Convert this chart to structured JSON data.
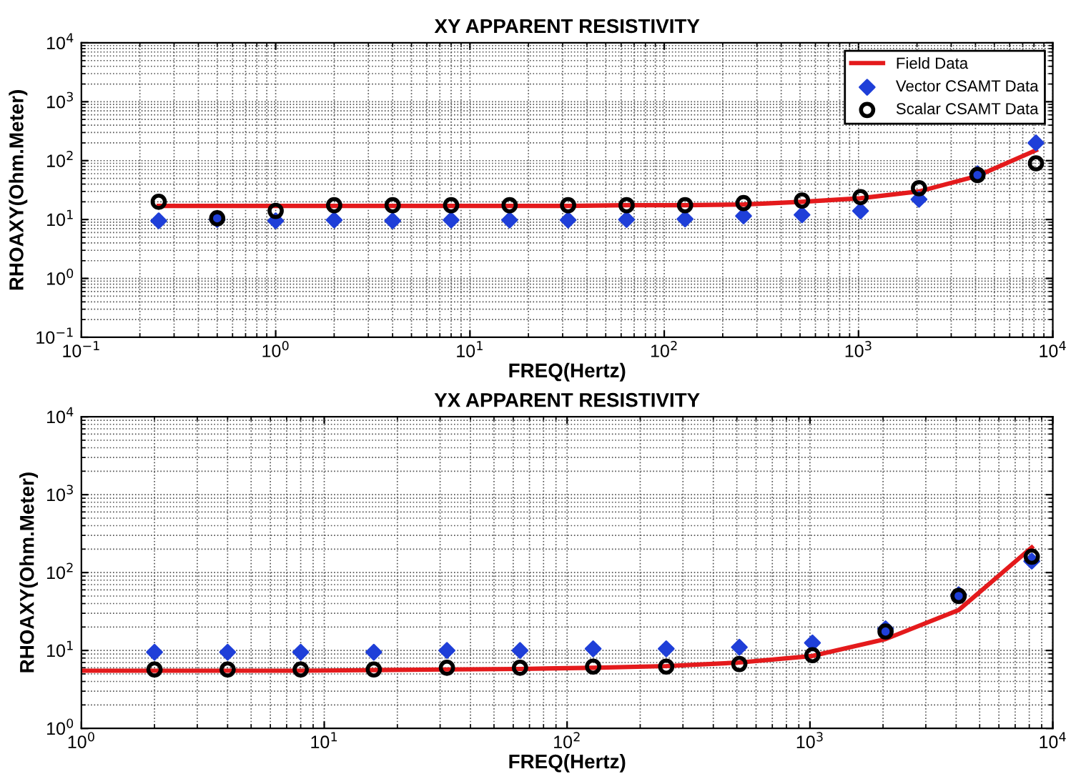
{
  "chart_data": [
    {
      "type": "line",
      "title": "XY APPARENT RESISTIVITY",
      "xlabel": "FREQ(Hertz)",
      "ylabel": "RHOAXY(Ohm.Meter)",
      "log": "xy",
      "grid": true,
      "legend": "top right",
      "xlim": [
        0.1,
        10000
      ],
      "ylim": [
        0.1,
        10000
      ],
      "xticks": [
        {
          "value": 0.1,
          "label": "10$^{−1}$"
        },
        {
          "value": 1,
          "label": "10$^{0}$"
        },
        {
          "value": 10,
          "label": "10$^{1}$"
        },
        {
          "value": 100,
          "label": "10$^{2}$"
        },
        {
          "value": 1000,
          "label": "10$^{3}$"
        },
        {
          "value": 10000,
          "label": "10$^{4}$"
        }
      ],
      "yticks": [
        {
          "value": 0.1,
          "label": "10$^{−1}$"
        },
        {
          "value": 1,
          "label": "10$^{0}$"
        },
        {
          "value": 10,
          "label": "10$^{1}$"
        },
        {
          "value": 100,
          "label": "10$^{2}$"
        },
        {
          "value": 1000,
          "label": "10$^{3}$"
        },
        {
          "value": 10000,
          "label": "10$^{4}$"
        }
      ],
      "x": [
        0.25,
        0.5,
        1,
        2,
        4,
        8,
        16,
        32,
        64,
        128,
        256,
        512,
        1024,
        2048,
        4096,
        8192
      ],
      "series": [
        {
          "name": "Field Data",
          "color": "#e41a1c",
          "line_style": "solid",
          "marker": "none",
          "values": [
            17,
            17,
            17,
            17,
            17,
            17,
            17,
            17,
            17.5,
            17.5,
            18,
            20,
            23,
            30,
            55,
            150
          ]
        },
        {
          "name": "Vector CSAMT Data",
          "type": "scatter",
          "color": "#1f3fd8",
          "marker": "diamond",
          "values": [
            9.5,
            10,
            9.5,
            9.8,
            9.5,
            9.8,
            9.8,
            9.8,
            10,
            10.2,
            11.5,
            12,
            14,
            22,
            60,
            200
          ]
        },
        {
          "name": "Scalar CSAMT Data",
          "type": "scatter",
          "color": "#000000",
          "marker": "circle",
          "values": [
            20,
            10.5,
            14,
            17.5,
            17.5,
            17.5,
            17.5,
            17.5,
            17.5,
            17.5,
            19,
            21,
            24,
            34,
            57,
            90
          ]
        }
      ]
    },
    {
      "type": "line",
      "title": "YX APPARENT RESISTIVITY",
      "xlabel": "FREQ(Hertz)",
      "ylabel": "RHOAXY(Ohm.Meter)",
      "log": "xy",
      "grid": true,
      "xlim": [
        1,
        10000
      ],
      "ylim": [
        1,
        10000
      ],
      "xticks": [
        {
          "value": 1,
          "label": "10$^{0}$"
        },
        {
          "value": 10,
          "label": "10$^{1}$"
        },
        {
          "value": 100,
          "label": "10$^{2}$"
        },
        {
          "value": 1000,
          "label": "10$^{3}$"
        },
        {
          "value": 10000,
          "label": "10$^{4}$"
        }
      ],
      "yticks": [
        {
          "value": 1,
          "label": "10$^{0}$"
        },
        {
          "value": 10,
          "label": "10$^{1}$"
        },
        {
          "value": 100,
          "label": "10$^{2}$"
        },
        {
          "value": 1000,
          "label": "10$^{3}$"
        },
        {
          "value": 10000,
          "label": "10$^{4}$"
        }
      ],
      "x": [
        2,
        4,
        8,
        16,
        32,
        64,
        128,
        256,
        512,
        1024,
        2048,
        4096,
        8192
      ],
      "series": [
        {
          "color": "#e41a1c",
          "line_style": "solid",
          "marker": "none",
          "x": [
            1,
            2,
            4,
            8,
            16,
            32,
            64,
            128,
            256,
            512,
            1024,
            2048,
            4096,
            8192
          ],
          "values": [
            5.5,
            5.5,
            5.5,
            5.5,
            5.6,
            5.7,
            5.8,
            6,
            6.3,
            7,
            8.5,
            14,
            33,
            210
          ]
        },
        {
          "type": "scatter",
          "color": "#1f3fd8",
          "marker": "diamond",
          "values": [
            9.5,
            9.5,
            9.5,
            9.5,
            10,
            10,
            10.5,
            10.5,
            11,
            12.5,
            19,
            52,
            140
          ]
        },
        {
          "type": "scatter",
          "color": "#000000",
          "marker": "circle",
          "values": [
            5.7,
            5.7,
            5.7,
            5.7,
            6,
            6,
            6.2,
            6.2,
            6.7,
            8.7,
            17.5,
            50,
            160
          ]
        }
      ]
    }
  ]
}
